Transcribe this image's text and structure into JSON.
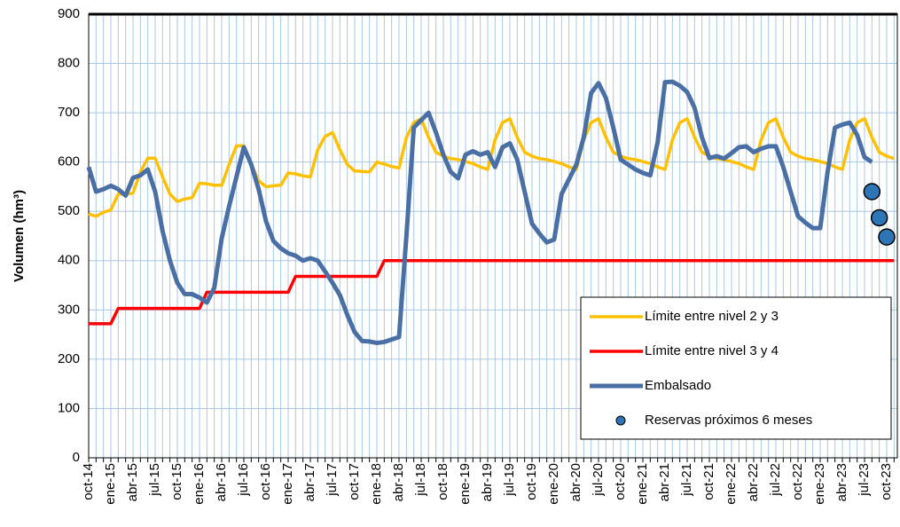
{
  "chart_data": {
    "type": "line",
    "y_label": "Volumen (hm³)",
    "categories": [
      "oct-14",
      null,
      null,
      "ene-15",
      null,
      null,
      "abr-15",
      null,
      null,
      "jul-15",
      null,
      null,
      "oct-15",
      null,
      null,
      "ene-16",
      null,
      null,
      "abr-16",
      null,
      null,
      "jul-16",
      null,
      null,
      "oct-16",
      null,
      null,
      "ene-17",
      null,
      null,
      "abr-17",
      null,
      null,
      "jul-17",
      null,
      null,
      "oct-17",
      null,
      null,
      "ene-18",
      null,
      null,
      "abr-18",
      null,
      null,
      "jul-18",
      null,
      null,
      "oct-18",
      null,
      null,
      "ene-19",
      null,
      null,
      "abr-19",
      null,
      null,
      "jul-19",
      null,
      null,
      "oct-19",
      null,
      null,
      "ene-20",
      null,
      null,
      "abr-20",
      null,
      null,
      "jul-20",
      null,
      null,
      "oct-20",
      null,
      null,
      "ene-21",
      null,
      null,
      "abr-21",
      null,
      null,
      "jul-21",
      null,
      null,
      "oct-21",
      null,
      null,
      "ene-22",
      null,
      null,
      "abr-22",
      null,
      null,
      "jul-22",
      null,
      null,
      "oct-22",
      null,
      null,
      "ene-23",
      null,
      null,
      "abr-23",
      null,
      null,
      "jul-23",
      null,
      null,
      "oct-23",
      null
    ],
    "series": [
      {
        "name": "Límite entre nivel 2 y 3",
        "color": "#ffc000",
        "style": "line",
        "values": [
          495,
          490,
          498,
          503,
          535,
          535,
          537,
          580,
          608,
          608,
          570,
          535,
          520,
          525,
          528,
          557,
          556,
          553,
          553,
          595,
          633,
          633,
          595,
          562,
          550,
          552,
          553,
          578,
          576,
          572,
          570,
          625,
          652,
          660,
          625,
          595,
          582,
          581,
          580,
          600,
          596,
          591,
          588,
          650,
          680,
          688,
          650,
          620,
          612,
          607,
          605,
          601,
          597,
          590,
          585,
          645,
          680,
          688,
          650,
          620,
          612,
          607,
          605,
          601,
          597,
          590,
          585,
          645,
          680,
          688,
          650,
          620,
          612,
          607,
          605,
          601,
          597,
          590,
          585,
          645,
          680,
          688,
          650,
          620,
          612,
          607,
          605,
          601,
          597,
          590,
          585,
          645,
          680,
          688,
          650,
          620,
          612,
          607,
          605,
          601,
          597,
          590,
          585,
          645,
          680,
          688,
          650,
          620,
          612,
          607
        ]
      },
      {
        "name": "Límite entre nivel 3 y 4",
        "color": "#ff0000",
        "style": "line",
        "values": [
          272,
          272,
          272,
          272,
          303,
          303,
          303,
          303,
          303,
          303,
          303,
          303,
          303,
          303,
          303,
          303,
          336,
          336,
          336,
          336,
          336,
          336,
          336,
          336,
          336,
          336,
          336,
          336,
          368,
          368,
          368,
          368,
          368,
          368,
          368,
          368,
          368,
          368,
          368,
          368,
          400,
          400,
          400,
          400,
          400,
          400,
          400,
          400,
          400,
          400,
          400,
          400,
          400,
          400,
          400,
          400,
          400,
          400,
          400,
          400,
          400,
          400,
          400,
          400,
          400,
          400,
          400,
          400,
          400,
          400,
          400,
          400,
          400,
          400,
          400,
          400,
          400,
          400,
          400,
          400,
          400,
          400,
          400,
          400,
          400,
          400,
          400,
          400,
          400,
          400,
          400,
          400,
          400,
          400,
          400,
          400,
          400,
          400,
          400,
          400,
          400,
          400,
          400,
          400,
          400,
          400,
          400,
          400,
          400,
          400
        ]
      },
      {
        "name": "Embalsado",
        "color": "#4a6fa5",
        "style": "line",
        "values": [
          590,
          540,
          545,
          552,
          545,
          532,
          568,
          573,
          585,
          540,
          460,
          400,
          355,
          332,
          332,
          325,
          315,
          345,
          445,
          510,
          570,
          630,
          595,
          545,
          480,
          440,
          425,
          415,
          410,
          400,
          405,
          400,
          378,
          355,
          330,
          290,
          255,
          237,
          236,
          233,
          235,
          240,
          245,
          450,
          670,
          685,
          700,
          660,
          615,
          580,
          567,
          615,
          622,
          615,
          620,
          590,
          630,
          638,
          605,
          540,
          475,
          455,
          437,
          443,
          535,
          565,
          595,
          650,
          740,
          760,
          730,
          670,
          605,
          595,
          585,
          578,
          573,
          640,
          762,
          763,
          755,
          742,
          710,
          650,
          608,
          612,
          607,
          618,
          630,
          632,
          620,
          627,
          632,
          632,
          590,
          540,
          490,
          477,
          466,
          466,
          580,
          670,
          676,
          680,
          655,
          610,
          600,
          null,
          null,
          null
        ]
      },
      {
        "name": "Reservas próximos 6 meses",
        "color": "#2e75b6",
        "style": "markers",
        "values": [
          null,
          null,
          null,
          null,
          null,
          null,
          null,
          null,
          null,
          null,
          null,
          null,
          null,
          null,
          null,
          null,
          null,
          null,
          null,
          null,
          null,
          null,
          null,
          null,
          null,
          null,
          null,
          null,
          null,
          null,
          null,
          null,
          null,
          null,
          null,
          null,
          null,
          null,
          null,
          null,
          null,
          null,
          null,
          null,
          null,
          null,
          null,
          null,
          null,
          null,
          null,
          null,
          null,
          null,
          null,
          null,
          null,
          null,
          null,
          null,
          null,
          null,
          null,
          null,
          null,
          null,
          null,
          null,
          null,
          null,
          null,
          null,
          null,
          null,
          null,
          null,
          null,
          null,
          null,
          null,
          null,
          null,
          null,
          null,
          null,
          null,
          null,
          null,
          null,
          null,
          null,
          null,
          null,
          null,
          null,
          null,
          null,
          null,
          null,
          null,
          null,
          null,
          null,
          null,
          null,
          null,
          540,
          487,
          448,
          null
        ]
      }
    ],
    "ylim": [
      0,
      900
    ],
    "yticks": [
      0,
      100,
      200,
      300,
      400,
      500,
      600,
      700,
      800,
      900
    ],
    "grid": true
  }
}
